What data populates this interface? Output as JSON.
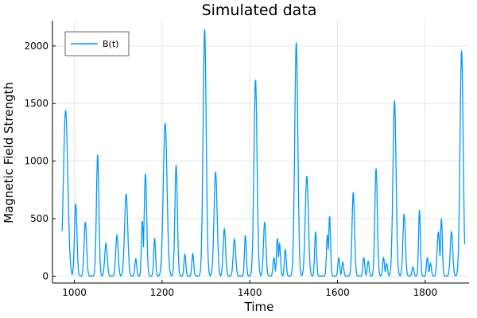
{
  "chart_data": {
    "type": "line",
    "title": "Simulated data",
    "xlabel": "Time",
    "ylabel": "Magnetic Field Strength",
    "xlim": [
      950,
      1900
    ],
    "ylim": [
      -60,
      2220
    ],
    "x_ticks": [
      1000,
      1200,
      1400,
      1600,
      1800
    ],
    "y_ticks": [
      0,
      500,
      1000,
      1500,
      2000
    ],
    "grid": true,
    "legend": {
      "placement": "top-left"
    },
    "line_color": "#009af9",
    "series": [
      {
        "name": "B(t)",
        "peaks": [
          [
            980,
            1440,
            7
          ],
          [
            1003,
            630,
            4
          ],
          [
            1025,
            470,
            4
          ],
          [
            1053,
            1055,
            4
          ],
          [
            1072,
            285,
            4
          ],
          [
            1097,
            355,
            4
          ],
          [
            1118,
            715,
            5
          ],
          [
            1140,
            150,
            3
          ],
          [
            1155,
            480,
            3
          ],
          [
            1162,
            890,
            4
          ],
          [
            1183,
            330,
            3
          ],
          [
            1207,
            1330,
            6
          ],
          [
            1232,
            965,
            4
          ],
          [
            1252,
            190,
            3
          ],
          [
            1270,
            195,
            3
          ],
          [
            1297,
            2145,
            5
          ],
          [
            1322,
            905,
            5
          ],
          [
            1342,
            410,
            4
          ],
          [
            1365,
            320,
            4
          ],
          [
            1390,
            355,
            3
          ],
          [
            1413,
            1705,
            5
          ],
          [
            1434,
            470,
            4
          ],
          [
            1455,
            160,
            3
          ],
          [
            1463,
            330,
            3
          ],
          [
            1468,
            280,
            3
          ],
          [
            1481,
            230,
            3
          ],
          [
            1506,
            2030,
            5
          ],
          [
            1530,
            870,
            5
          ],
          [
            1550,
            385,
            3
          ],
          [
            1577,
            360,
            3
          ],
          [
            1582,
            520,
            3
          ],
          [
            1603,
            160,
            3
          ],
          [
            1612,
            120,
            3
          ],
          [
            1636,
            730,
            4
          ],
          [
            1660,
            160,
            3
          ],
          [
            1670,
            130,
            3
          ],
          [
            1688,
            935,
            4
          ],
          [
            1705,
            160,
            3
          ],
          [
            1712,
            110,
            3
          ],
          [
            1730,
            1525,
            5
          ],
          [
            1752,
            540,
            4
          ],
          [
            1772,
            80,
            3
          ],
          [
            1787,
            575,
            3
          ],
          [
            1805,
            160,
            3
          ],
          [
            1812,
            110,
            3
          ],
          [
            1830,
            380,
            4
          ],
          [
            1837,
            500,
            3
          ],
          [
            1860,
            385,
            4
          ],
          [
            1883,
            1960,
            5
          ]
        ],
        "t_start": 972,
        "t_end": 1890
      }
    ]
  }
}
